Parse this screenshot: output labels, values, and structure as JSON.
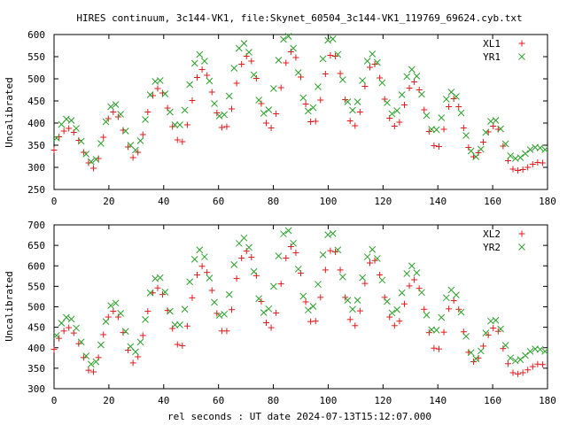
{
  "chart_data": {
    "type": "scatter",
    "title": "HIRES continuum, 3c144-VK1, file:Skynet_60504_3c144-VK1_119769_69624.cyb.txt",
    "xlabel": "rel seconds : UT date 2024-07-13T15:12:07.000",
    "colors": {
      "X": "#e41a1c",
      "Y": "#2ca02c"
    },
    "panels": [
      {
        "ylabel": "Uncalibrated",
        "xlim": [
          0,
          180
        ],
        "ylim": [
          250,
          600
        ],
        "xticks": [
          "0",
          "20",
          "40",
          "60",
          "80",
          "100",
          "120",
          "140",
          "160",
          "180"
        ],
        "yticks": [
          "250",
          "300",
          "350",
          "400",
          "450",
          "500",
          "550",
          "600"
        ],
        "legend_position": "top-right",
        "series": [
          {
            "name": "XL1",
            "marker": "plus",
            "x": [
              0,
              1.8,
              3.6,
              5.4,
              7.2,
              9,
              10.8,
              12.6,
              14.4,
              16.2,
              18,
              19.8,
              21.6,
              23.4,
              25.2,
              27,
              28.8,
              30.6,
              32.4,
              34.2,
              36,
              37.8,
              39.6,
              41.4,
              43.2,
              45,
              46.8,
              48.6,
              50.4,
              52.2,
              54,
              55.8,
              57.6,
              59.4,
              61.2,
              63,
              64.8,
              66.6,
              68.4,
              70.2,
              72,
              73.8,
              75.6,
              77.4,
              79.2,
              81,
              82.8,
              84.6,
              86.4,
              88.2,
              90,
              91.8,
              93.6,
              95.4,
              97.2,
              99,
              100.8,
              102.6,
              104.4,
              106.2,
              108,
              109.8,
              111.6,
              113.4,
              115.2,
              117,
              118.8,
              120.6,
              122.4,
              124.2,
              126,
              127.8,
              129.6,
              131.4,
              133.2,
              135,
              136.8,
              138.6,
              140.4,
              142.2,
              144,
              145.8,
              147.6,
              149.4,
              151.2,
              153,
              154.8,
              156.6,
              158.4,
              160.2,
              162,
              163.8,
              165.6,
              167.4,
              169.2,
              171,
              172.8,
              174.6,
              176.4,
              178.2
            ],
            "y": [
              339,
              369,
              382,
              388,
              379,
              361,
              334,
              310,
              298,
              320,
              368,
              410,
              425,
              414,
              384,
              346,
              322,
              334,
              374,
              425,
              462,
              478,
              468,
              434,
              392,
              362,
              358,
              396,
              451,
              503,
              521,
              508,
              470,
              423,
              390,
              392,
              432,
              490,
              533,
              551,
              540,
              501,
              444,
              400,
              389,
              421,
              480,
              536,
              561,
              548,
              504,
              443,
              403,
              404,
              452,
              511,
              553,
              551,
              512,
              453,
              405,
              394,
              425,
              483,
              526,
              533,
              502,
              454,
              411,
              393,
              402,
              441,
              479,
              493,
              475,
              430,
              381,
              349,
              347,
              386,
              437,
              455,
              437,
              389,
              345,
              324,
              333,
              357,
              380,
              393,
              386,
              348,
              315,
              296,
              293,
              295,
              300,
              307,
              311,
              310
            ]
          },
          {
            "name": "YR1",
            "marker": "cross",
            "x": [
              0.9,
              2.7,
              4.5,
              6.3,
              8.1,
              9.9,
              11.7,
              13.5,
              15.3,
              17.1,
              18.9,
              20.7,
              22.5,
              24.3,
              26.1,
              27.9,
              29.7,
              31.5,
              33.3,
              35.1,
              36.9,
              38.7,
              40.5,
              42.3,
              44.1,
              45.9,
              47.7,
              49.5,
              51.3,
              53.1,
              54.9,
              56.7,
              58.5,
              60.3,
              62.1,
              63.9,
              65.7,
              67.5,
              69.3,
              71.1,
              72.9,
              74.7,
              76.5,
              78.3,
              80.1,
              81.9,
              83.7,
              85.5,
              87.3,
              89.1,
              90.9,
              92.7,
              94.5,
              96.3,
              98.1,
              99.9,
              101.7,
              103.5,
              105.3,
              107.1,
              108.9,
              110.7,
              112.5,
              114.3,
              116.1,
              117.9,
              119.7,
              121.5,
              123.3,
              125.1,
              126.9,
              128.7,
              130.5,
              132.3,
              134.1,
              135.9,
              137.7,
              139.5,
              141.3,
              143.1,
              144.9,
              146.7,
              148.5,
              150.3,
              152.1,
              153.9,
              155.7,
              157.5,
              159.3,
              161.1,
              162.9,
              164.7,
              166.5,
              168.3,
              170.1,
              171.9,
              173.7,
              175.5,
              177.3,
              179.1
            ],
            "y": [
              366,
              397,
              409,
              406,
              388,
              359,
              330,
              313,
              318,
              354,
              403,
              437,
              442,
              420,
              382,
              350,
              339,
              360,
              408,
              464,
              494,
              496,
              466,
              425,
              396,
              396,
              429,
              487,
              535,
              555,
              540,
              495,
              444,
              416,
              419,
              461,
              524,
              569,
              580,
              560,
              509,
              452,
              422,
              430,
              478,
              542,
              589,
              596,
              569,
              514,
              457,
              427,
              435,
              482,
              545,
              587,
              590,
              555,
              498,
              448,
              429,
              448,
              496,
              540,
              556,
              537,
              491,
              446,
              421,
              428,
              464,
              505,
              521,
              506,
              465,
              417,
              386,
              385,
              412,
              454,
              470,
              460,
              423,
              372,
              337,
              324,
              341,
              379,
              404,
              406,
              387,
              353,
              326,
              320,
              322,
              331,
              340,
              345,
              344,
              340
            ]
          }
        ]
      },
      {
        "ylabel": "Uncalibrated",
        "xlim": [
          0,
          180
        ],
        "ylim": [
          300,
          700
        ],
        "xticks": [
          "0",
          "20",
          "40",
          "60",
          "80",
          "100",
          "120",
          "140",
          "160",
          "180"
        ],
        "yticks": [
          "300",
          "350",
          "400",
          "450",
          "500",
          "550",
          "600",
          "650",
          "700"
        ],
        "legend_position": "top-right",
        "series": [
          {
            "name": "XL2",
            "marker": "plus",
            "x": [
              0,
              1.8,
              3.6,
              5.4,
              7.2,
              9,
              10.8,
              12.6,
              14.4,
              16.2,
              18,
              19.8,
              21.6,
              23.4,
              25.2,
              27,
              28.8,
              30.6,
              32.4,
              34.2,
              36,
              37.8,
              39.6,
              41.4,
              43.2,
              45,
              46.8,
              48.6,
              50.4,
              52.2,
              54,
              55.8,
              57.6,
              59.4,
              61.2,
              63,
              64.8,
              66.6,
              68.4,
              70.2,
              72,
              73.8,
              75.6,
              77.4,
              79.2,
              81,
              82.8,
              84.6,
              86.4,
              88.2,
              90,
              91.8,
              93.6,
              95.4,
              97.2,
              99,
              100.8,
              102.6,
              104.4,
              106.2,
              108,
              109.8,
              111.6,
              113.4,
              115.2,
              117,
              118.8,
              120.6,
              122.4,
              124.2,
              126,
              127.8,
              129.6,
              131.4,
              133.2,
              135,
              136.8,
              138.6,
              140.4,
              142.2,
              144,
              145.8,
              147.6,
              149.4,
              151.2,
              153,
              154.8,
              156.6,
              158.4,
              160.2,
              162,
              163.8,
              165.6,
              167.4,
              169.2,
              171,
              172.8,
              174.6,
              176.4,
              178.2
            ],
            "y": [
              396,
              423,
              441,
              449,
              436,
              410,
              376,
              345,
              341,
              376,
              432,
              475,
              489,
              475,
              437,
              394,
              363,
              378,
              430,
              489,
              534,
              546,
              530,
              491,
              447,
              408,
              405,
              453,
              522,
              578,
              599,
              584,
              540,
              484,
              441,
              441,
              493,
              569,
              619,
              636,
              621,
              576,
              513,
              461,
              449,
              485,
              556,
              619,
              647,
              632,
              582,
              512,
              464,
              465,
              523,
              590,
              637,
              634,
              590,
              523,
              469,
              454,
              490,
              557,
              607,
              613,
              578,
              523,
              475,
              454,
              465,
              507,
              551,
              566,
              545,
              494,
              437,
              399,
              397,
              438,
              495,
              515,
              494,
              439,
              389,
              366,
              375,
              404,
              431,
              448,
              440,
              398,
              361,
              339,
              336,
              339,
              346,
              354,
              360,
              359
            ]
          },
          {
            "name": "YR2",
            "marker": "cross",
            "x": [
              0.9,
              2.7,
              4.5,
              6.3,
              8.1,
              9.9,
              11.7,
              13.5,
              15.3,
              17.1,
              18.9,
              20.7,
              22.5,
              24.3,
              26.1,
              27.9,
              29.7,
              31.5,
              33.3,
              35.1,
              36.9,
              38.7,
              40.5,
              42.3,
              44.1,
              45.9,
              47.7,
              49.5,
              51.3,
              53.1,
              54.9,
              56.7,
              58.5,
              60.3,
              62.1,
              63.9,
              65.7,
              67.5,
              69.3,
              71.1,
              72.9,
              74.7,
              76.5,
              78.3,
              80.1,
              81.9,
              83.7,
              85.5,
              87.3,
              89.1,
              90.9,
              92.7,
              94.5,
              96.3,
              98.1,
              99.9,
              101.7,
              103.5,
              105.3,
              107.1,
              108.9,
              110.7,
              112.5,
              114.3,
              116.1,
              117.9,
              119.7,
              121.5,
              123.3,
              125.1,
              126.9,
              128.7,
              130.5,
              132.3,
              134.1,
              135.9,
              137.7,
              139.5,
              141.3,
              143.1,
              144.9,
              146.7,
              148.5,
              150.3,
              152.1,
              153.9,
              155.7,
              157.5,
              159.3,
              161.1,
              162.9,
              164.7,
              166.5,
              168.3,
              170.1,
              171.9,
              173.7,
              175.5,
              177.3,
              179.1
            ],
            "y": [
              430,
              460,
              474,
              470,
              448,
              414,
              380,
              360,
              366,
              407,
              464,
              503,
              509,
              484,
              440,
              403,
              390,
              414,
              469,
              534,
              569,
              571,
              536,
              489,
              456,
              456,
              494,
              561,
              616,
              639,
              622,
              570,
              511,
              479,
              482,
              530,
              603,
              655,
              668,
              645,
              586,
              520,
              486,
              495,
              550,
              624,
              678,
              686,
              655,
              592,
              526,
              492,
              501,
              555,
              627,
              676,
              679,
              639,
              573,
              516,
              494,
              516,
              571,
              622,
              640,
              618,
              565,
              513,
              485,
              493,
              534,
              581,
              600,
              583,
              535,
              480,
              444,
              443,
              474,
              522,
              541,
              529,
              487,
              428,
              388,
              373,
              392,
              436,
              465,
              467,
              446,
              406,
              375,
              368,
              371,
              381,
              391,
              397,
              396,
              391
            ]
          }
        ]
      }
    ]
  }
}
